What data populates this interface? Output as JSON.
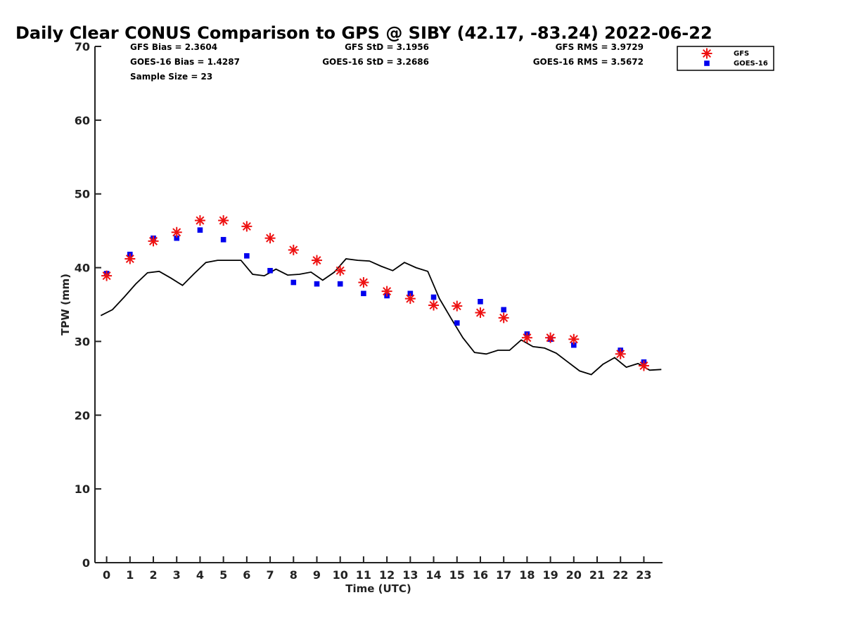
{
  "chart_data": {
    "type": "scatter",
    "title": "Daily Clear CONUS Comparison to GPS @ SIBY (42.17, -83.24) 2022-06-22",
    "xlabel": "Time (UTC)",
    "ylabel": "TPW (mm)",
    "xlim": [
      -0.5,
      23.8
    ],
    "ylim": [
      0,
      70
    ],
    "x_ticks": [
      0,
      1,
      2,
      3,
      4,
      5,
      6,
      7,
      8,
      9,
      10,
      11,
      12,
      13,
      14,
      15,
      16,
      17,
      18,
      19,
      20,
      21,
      22,
      23
    ],
    "y_ticks": [
      0,
      10,
      20,
      30,
      40,
      50,
      60,
      70
    ],
    "grid": false,
    "legend_position": "top-right",
    "stats": {
      "gfs_bias": "GFS Bias = 2.3604",
      "goes_bias": "GOES-16 Bias = 1.4287",
      "sample_size": "Sample Size = 23",
      "gfs_std": "GFS StD = 3.1956",
      "goes_std": "GOES-16 StD = 3.2686",
      "gfs_rms": "GFS RMS = 3.9729",
      "goes_rms": "GOES-16 RMS = 3.5672"
    },
    "series": [
      {
        "name": "GFS",
        "marker": "asterisk",
        "color": "#ee1111",
        "points": [
          [
            0,
            38.9
          ],
          [
            1,
            41.2
          ],
          [
            2,
            43.6
          ],
          [
            3,
            44.8
          ],
          [
            4,
            46.4
          ],
          [
            5,
            46.4
          ],
          [
            6,
            45.6
          ],
          [
            7,
            44.0
          ],
          [
            8,
            42.4
          ],
          [
            9,
            41.0
          ],
          [
            10,
            39.6
          ],
          [
            11,
            38.0
          ],
          [
            12,
            36.8
          ],
          [
            13,
            35.8
          ],
          [
            14,
            34.9
          ],
          [
            15,
            34.8
          ],
          [
            16,
            33.9
          ],
          [
            17,
            33.2
          ],
          [
            18,
            30.5
          ],
          [
            19,
            30.5
          ],
          [
            20,
            30.3
          ],
          [
            22,
            28.3
          ],
          [
            23,
            26.7
          ]
        ]
      },
      {
        "name": "GOES-16",
        "marker": "square",
        "color": "#0000ee",
        "points": [
          [
            0,
            39.2
          ],
          [
            1,
            41.8
          ],
          [
            2,
            44.0
          ],
          [
            3,
            44.0
          ],
          [
            4,
            45.1
          ],
          [
            5,
            43.8
          ],
          [
            6,
            41.6
          ],
          [
            7,
            39.6
          ],
          [
            8,
            38.0
          ],
          [
            9,
            37.8
          ],
          [
            10,
            37.8
          ],
          [
            11,
            36.5
          ],
          [
            12,
            36.2
          ],
          [
            13,
            36.5
          ],
          [
            14,
            36.0
          ],
          [
            15,
            32.5
          ],
          [
            16,
            35.4
          ],
          [
            17,
            34.3
          ],
          [
            18,
            31.0
          ],
          [
            19,
            30.3
          ],
          [
            20,
            29.5
          ],
          [
            22,
            28.8
          ],
          [
            23,
            27.2
          ]
        ]
      },
      {
        "name": "",
        "marker": "line",
        "color": "#000000",
        "points": [
          [
            -0.25,
            33.5
          ],
          [
            0.25,
            34.3
          ],
          [
            0.75,
            36.0
          ],
          [
            1.25,
            37.8
          ],
          [
            1.75,
            39.3
          ],
          [
            2.25,
            39.5
          ],
          [
            2.75,
            38.6
          ],
          [
            3.25,
            37.6
          ],
          [
            3.75,
            39.2
          ],
          [
            4.25,
            40.7
          ],
          [
            4.75,
            41.0
          ],
          [
            5.25,
            41.0
          ],
          [
            5.75,
            41.0
          ],
          [
            6.25,
            39.1
          ],
          [
            6.75,
            38.9
          ],
          [
            7.25,
            39.8
          ],
          [
            7.75,
            39.0
          ],
          [
            8.25,
            39.1
          ],
          [
            8.75,
            39.4
          ],
          [
            9.25,
            38.3
          ],
          [
            9.75,
            39.4
          ],
          [
            10.25,
            41.2
          ],
          [
            10.75,
            41.0
          ],
          [
            11.25,
            40.9
          ],
          [
            11.75,
            40.2
          ],
          [
            12.25,
            39.6
          ],
          [
            12.75,
            40.7
          ],
          [
            13.25,
            40.0
          ],
          [
            13.75,
            39.5
          ],
          [
            14.25,
            35.8
          ],
          [
            14.75,
            33.1
          ],
          [
            15.25,
            30.5
          ],
          [
            15.75,
            28.5
          ],
          [
            16.25,
            28.3
          ],
          [
            16.75,
            28.8
          ],
          [
            17.25,
            28.8
          ],
          [
            17.75,
            30.2
          ],
          [
            18.25,
            29.3
          ],
          [
            18.75,
            29.1
          ],
          [
            19.25,
            28.4
          ],
          [
            19.75,
            27.2
          ],
          [
            20.25,
            26.0
          ],
          [
            20.75,
            25.5
          ],
          [
            21.25,
            26.9
          ],
          [
            21.75,
            27.8
          ],
          [
            22.25,
            26.5
          ],
          [
            22.75,
            27.0
          ],
          [
            23.25,
            26.1
          ],
          [
            23.75,
            26.2
          ]
        ]
      }
    ]
  }
}
